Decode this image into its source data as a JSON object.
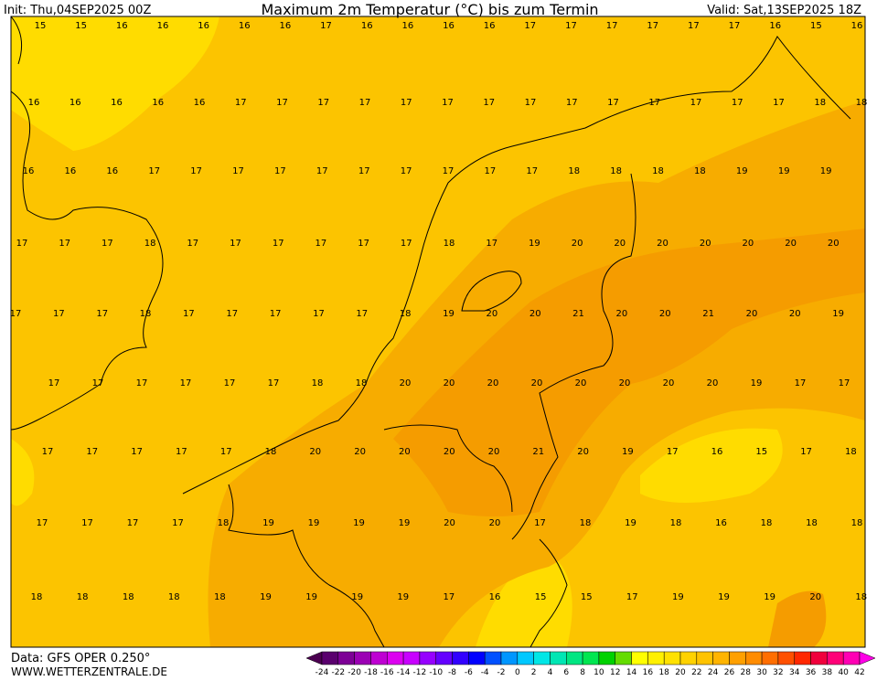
{
  "header": {
    "init": "Init: Thu,04SEP2025 00Z",
    "title": "Maximum 2m Temperatur (°C) bis zum Termin",
    "valid": "Valid: Sat,13SEP2025 18Z"
  },
  "footer": {
    "data_source": "Data: GFS OPER 0.250°",
    "website": "WWW.WETTERZENTRALE.DE"
  },
  "map": {
    "rows": [
      [
        15,
        15,
        16,
        16,
        16,
        16,
        16,
        17,
        16,
        16,
        16,
        16,
        17,
        17,
        17,
        17,
        17,
        17,
        16,
        15,
        16
      ],
      [
        16,
        16,
        16,
        16,
        16,
        17,
        17,
        17,
        17,
        17,
        17,
        17,
        17,
        17,
        17,
        17,
        17,
        17,
        17,
        18,
        18
      ],
      [
        16,
        16,
        16,
        17,
        17,
        17,
        17,
        17,
        17,
        17,
        17,
        17,
        17,
        18,
        18,
        18,
        18,
        19,
        19,
        19
      ],
      [
        17,
        17,
        17,
        18,
        17,
        17,
        17,
        17,
        17,
        17,
        18,
        17,
        19,
        20,
        20,
        20,
        20,
        20,
        20,
        20
      ],
      [
        17,
        17,
        17,
        18,
        17,
        17,
        17,
        17,
        17,
        18,
        19,
        20,
        20,
        21,
        20,
        20,
        21,
        20,
        20,
        19
      ],
      [
        17,
        17,
        17,
        17,
        17,
        17,
        18,
        18,
        20,
        20,
        20,
        20,
        20,
        20,
        20,
        20,
        19,
        17,
        17
      ],
      [
        17,
        17,
        17,
        17,
        17,
        18,
        20,
        20,
        20,
        20,
        20,
        21,
        20,
        19,
        17,
        16,
        15,
        17,
        18
      ],
      [
        17,
        17,
        17,
        17,
        18,
        19,
        19,
        19,
        19,
        20,
        20,
        17,
        18,
        19,
        18,
        16,
        18,
        18,
        18
      ],
      [
        18,
        18,
        18,
        18,
        18,
        19,
        19,
        19,
        19,
        17,
        16,
        15,
        15,
        17,
        19,
        19,
        19,
        20,
        18
      ]
    ]
  },
  "colorbar": {
    "labels": [
      -24,
      -22,
      -20,
      -18,
      -16,
      -14,
      -12,
      -10,
      -8,
      -6,
      -4,
      -2,
      0,
      2,
      4,
      6,
      8,
      10,
      12,
      14,
      16,
      18,
      20,
      22,
      24,
      26,
      28,
      30,
      32,
      34,
      36,
      38,
      40,
      42
    ]
  }
}
